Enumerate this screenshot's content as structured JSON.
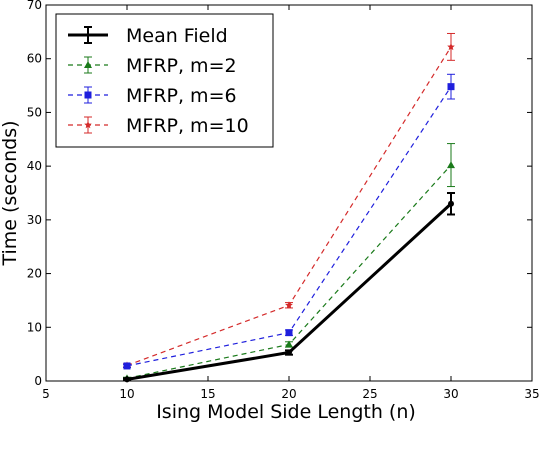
{
  "chart_data": {
    "type": "line",
    "xlabel": "Ising Model Side Length (n)",
    "ylabel": "Time (seconds)",
    "xlim": [
      5,
      35
    ],
    "ylim": [
      0,
      70
    ],
    "x_ticks": [
      5,
      10,
      15,
      20,
      25,
      30,
      35
    ],
    "y_ticks": [
      0,
      10,
      20,
      30,
      40,
      50,
      60,
      70
    ],
    "grid": false,
    "legend_position": "top-left",
    "x": [
      10,
      20,
      30
    ],
    "series": [
      {
        "name": "Mean Field",
        "values": [
          0.3,
          5.3,
          33.0
        ],
        "errors": [
          0.2,
          0.4,
          2.0
        ],
        "color": "#000000",
        "style": "solid",
        "marker": "dot"
      },
      {
        "name": "MFRP, m=2",
        "values": [
          0.5,
          6.8,
          40.2
        ],
        "errors": [
          0.2,
          0.5,
          4.0
        ],
        "color": "#1a7a1a",
        "style": "dashed",
        "marker": "triangle"
      },
      {
        "name": "MFRP, m=6",
        "values": [
          2.8,
          9.0,
          54.8
        ],
        "errors": [
          0.3,
          0.5,
          2.3
        ],
        "color": "#1f1fdd",
        "style": "dashed",
        "marker": "square"
      },
      {
        "name": "MFRP, m=10",
        "values": [
          2.9,
          14.1,
          62.2
        ],
        "errors": [
          0.3,
          0.5,
          2.5
        ],
        "color": "#d42a2a",
        "style": "dashed",
        "marker": "star"
      }
    ]
  }
}
